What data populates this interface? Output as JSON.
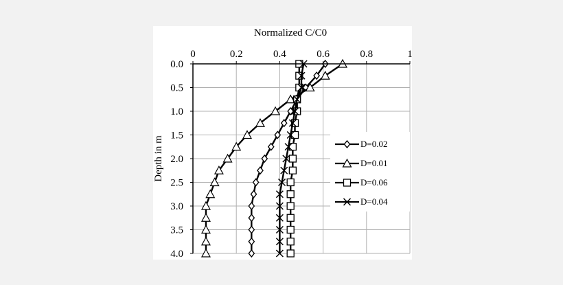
{
  "chart_data": {
    "type": "line",
    "title": "",
    "xlabel": "Normalized C/C0",
    "ylabel": "Depth in m",
    "x_axis_position": "top",
    "y_axis_inverted": true,
    "xlim": [
      0,
      1
    ],
    "ylim": [
      0,
      4
    ],
    "x_ticks": [
      0,
      0.2,
      0.4,
      0.6,
      0.8,
      1
    ],
    "x_tick_labels": [
      "0",
      "0.2",
      "0.4",
      "0.6",
      "0.8",
      "1"
    ],
    "y_ticks": [
      0,
      0.5,
      1,
      1.5,
      2,
      2.5,
      3,
      3.5,
      4
    ],
    "y_tick_labels": [
      "0.0",
      "0.5",
      "1.0",
      "1.5",
      "2.0",
      "2.5",
      "3.0",
      "3.5",
      "4.0"
    ],
    "grid": true,
    "legend_position": "right",
    "series": [
      {
        "name": "D=0.02",
        "marker": "diamond",
        "x": [
          0.61,
          0.57,
          0.52,
          0.48,
          0.45,
          0.42,
          0.39,
          0.36,
          0.33,
          0.31,
          0.29,
          0.28,
          0.27,
          0.27,
          0.27,
          0.27,
          0.27
        ],
        "y": [
          0,
          0.25,
          0.5,
          0.75,
          1,
          1.25,
          1.5,
          1.75,
          2,
          2.25,
          2.5,
          2.75,
          3,
          3.25,
          3.5,
          3.75,
          4
        ]
      },
      {
        "name": "D=0.01",
        "marker": "triangle",
        "x": [
          0.69,
          0.61,
          0.54,
          0.45,
          0.38,
          0.31,
          0.25,
          0.2,
          0.16,
          0.12,
          0.1,
          0.08,
          0.06,
          0.06,
          0.06,
          0.06,
          0.06
        ],
        "y": [
          0,
          0.25,
          0.5,
          0.75,
          1,
          1.25,
          1.5,
          1.75,
          2,
          2.25,
          2.5,
          2.75,
          3,
          3.25,
          3.5,
          3.75,
          4
        ]
      },
      {
        "name": "D=0.06",
        "marker": "square",
        "x": [
          0.49,
          0.49,
          0.49,
          0.48,
          0.48,
          0.47,
          0.47,
          0.46,
          0.46,
          0.46,
          0.45,
          0.45,
          0.45,
          0.45,
          0.45,
          0.45,
          0.45
        ],
        "y": [
          0,
          0.25,
          0.5,
          0.75,
          1,
          1.25,
          1.5,
          1.75,
          2,
          2.25,
          2.5,
          2.75,
          3,
          3.25,
          3.5,
          3.75,
          4
        ]
      },
      {
        "name": "D=0.04",
        "marker": "x",
        "x": [
          0.51,
          0.5,
          0.5,
          0.48,
          0.47,
          0.46,
          0.45,
          0.44,
          0.43,
          0.42,
          0.41,
          0.4,
          0.4,
          0.4,
          0.4,
          0.4,
          0.4
        ],
        "y": [
          0,
          0.25,
          0.5,
          0.75,
          1,
          1.25,
          1.5,
          1.75,
          2,
          2.25,
          2.5,
          2.75,
          3,
          3.25,
          3.5,
          3.75,
          4
        ]
      }
    ]
  }
}
